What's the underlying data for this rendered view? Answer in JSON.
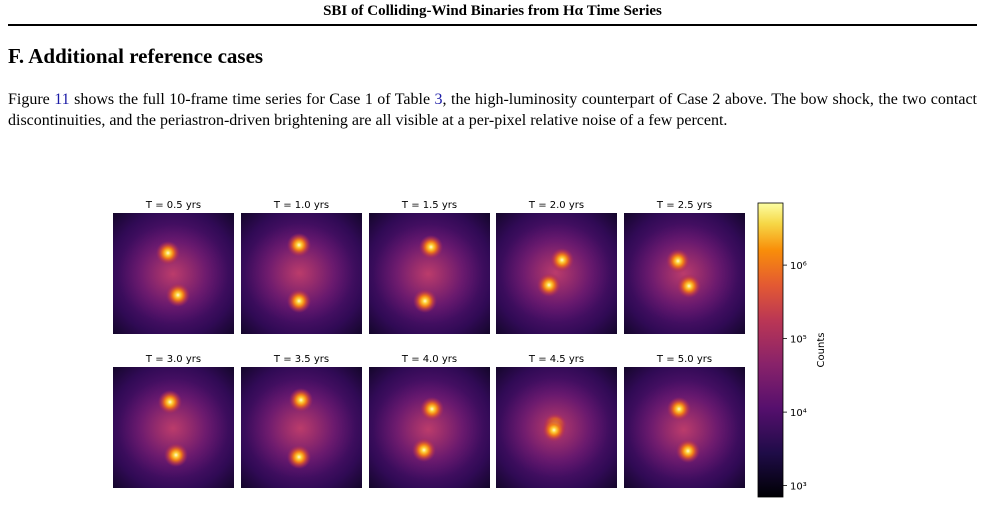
{
  "header": {
    "running_title": "SBI of Colliding-Wind Binaries from Hα Time Series"
  },
  "section": {
    "title": "F. Additional reference cases",
    "paragraph": [
      "Figure ",
      "11",
      " shows the full 10-frame time series for Case 1 of Table ",
      "3",
      ", the high-luminosity counterpart of Case 2 above. The bow shock, the two contact discontinuities, and the periastron-driven brightening are all visible at a per-pixel relative noise of a few percent."
    ]
  },
  "figure": {
    "panel_titles": [
      "T = 0.5 yrs",
      "T = 1.0 yrs",
      "T = 1.5 yrs",
      "T = 2.0 yrs",
      "T = 2.5 yrs",
      "T = 3.0 yrs",
      "T = 3.5 yrs",
      "T = 4.0 yrs",
      "T = 4.5 yrs",
      "T = 5.0 yrs"
    ],
    "colorbar": {
      "label": "Counts",
      "scale": "log",
      "lim": [
        700,
        7000000
      ],
      "ticks": [
        {
          "value": 1000,
          "label": "10³"
        },
        {
          "value": 10000,
          "label": "10⁴"
        },
        {
          "value": 100000,
          "label": "10⁵"
        },
        {
          "value": 1000000,
          "label": "10⁶"
        }
      ]
    }
  }
}
